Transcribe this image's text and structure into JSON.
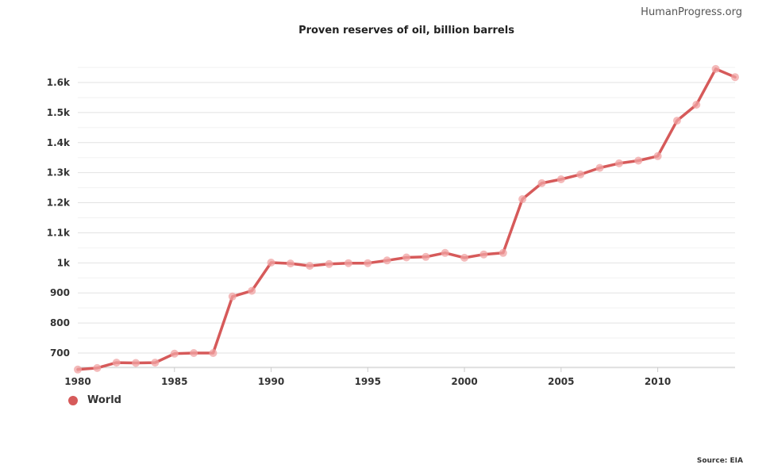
{
  "header": {
    "brand": "HumanProgress.org"
  },
  "footer": {
    "source": "Source: EIA"
  },
  "colors": {
    "series": "#d65a5a",
    "marker": "#f0a3a3",
    "grid": "#e2e2e2",
    "grid_minor": "#f2f2f2"
  },
  "chart_data": {
    "type": "line",
    "title": "Proven reserves of oil, billion barrels",
    "xlabel": "",
    "ylabel": "",
    "xlim": [
      1980,
      2014
    ],
    "ylim": [
      650,
      1650
    ],
    "x_ticks": [
      {
        "value": 1980,
        "label": "1980"
      },
      {
        "value": 1985,
        "label": "1985"
      },
      {
        "value": 1990,
        "label": "1990"
      },
      {
        "value": 1995,
        "label": "1995"
      },
      {
        "value": 2000,
        "label": "2000"
      },
      {
        "value": 2005,
        "label": "2005"
      },
      {
        "value": 2010,
        "label": "2010"
      }
    ],
    "y_ticks": [
      {
        "value": 700,
        "label": "700"
      },
      {
        "value": 800,
        "label": "800"
      },
      {
        "value": 900,
        "label": "900"
      },
      {
        "value": 1000,
        "label": "1k"
      },
      {
        "value": 1100,
        "label": "1.1k"
      },
      {
        "value": 1200,
        "label": "1.2k"
      },
      {
        "value": 1300,
        "label": "1.3k"
      },
      {
        "value": 1400,
        "label": "1.4k"
      },
      {
        "value": 1500,
        "label": "1.5k"
      },
      {
        "value": 1600,
        "label": "1.6k"
      }
    ],
    "legend": {
      "position": "bottom-left"
    },
    "series": [
      {
        "name": "World",
        "x": [
          1980,
          1981,
          1982,
          1983,
          1984,
          1985,
          1986,
          1987,
          1988,
          1989,
          1990,
          1991,
          1992,
          1993,
          1994,
          1995,
          1996,
          1997,
          1998,
          1999,
          2000,
          2001,
          2002,
          2003,
          2004,
          2005,
          2006,
          2007,
          2008,
          2009,
          2010,
          2011,
          2012,
          2013,
          2014
        ],
        "values": [
          645,
          650,
          668,
          667,
          668,
          698,
          700,
          700,
          888,
          907,
          1001,
          998,
          990,
          996,
          999,
          999,
          1008,
          1018,
          1020,
          1033,
          1017,
          1028,
          1033,
          1212,
          1265,
          1278,
          1294,
          1316,
          1331,
          1340,
          1355,
          1473,
          1526,
          1645,
          1618
        ]
      }
    ]
  }
}
